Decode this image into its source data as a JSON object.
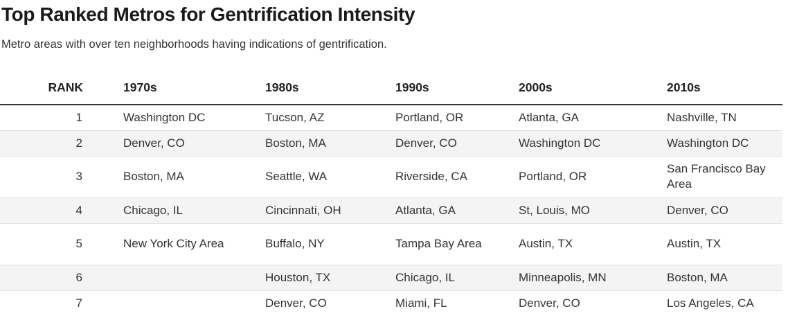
{
  "title": "Top Ranked Metros for Gentrification Intensity",
  "subtitle": "Metro areas with over ten neighborhoods having indications of gentrification.",
  "chart_data": {
    "type": "table",
    "columns": [
      "RANK",
      "1970s",
      "1980s",
      "1990s",
      "2000s",
      "2010s"
    ],
    "rows": [
      [
        "1",
        "Washington DC",
        "Tucson, AZ",
        "Portland, OR",
        "Atlanta, GA",
        "Nashville, TN"
      ],
      [
        "2",
        "Denver, CO",
        "Boston, MA",
        "Denver, CO",
        "Washington DC",
        "Washington DC"
      ],
      [
        "3",
        "Boston, MA",
        "Seattle, WA",
        "Riverside, CA",
        "Portland, OR",
        "San Francisco Bay Area"
      ],
      [
        "4",
        "Chicago, IL",
        "Cincinnati, OH",
        "Atlanta, GA",
        "St, Louis, MO",
        "Denver, CO"
      ],
      [
        "5",
        "New York City Area",
        "Buffalo, NY",
        "Tampa Bay Area",
        "Austin, TX",
        "Austin, TX"
      ],
      [
        "6",
        "",
        "Houston, TX",
        "Chicago, IL",
        "Minneapolis, MN",
        "Boston, MA"
      ],
      [
        "7",
        "",
        "Denver, CO",
        "Miami, FL",
        "Denver, CO",
        "Los Angeles, CA"
      ]
    ]
  }
}
